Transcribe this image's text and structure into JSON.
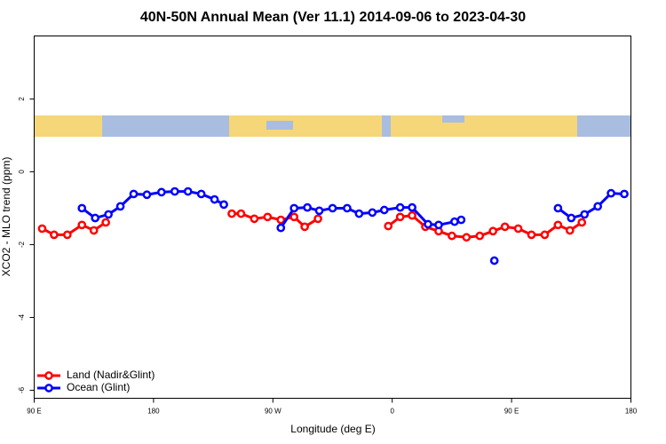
{
  "chart_data": {
    "type": "line",
    "title": "40N-50N Annual Mean (Ver 11.1)   2014-09-06 to 2023-04-30",
    "x_label": "Longitude (deg E)",
    "y_label": "XCO2 - MLO trend (ppm)",
    "xlim": [
      90,
      540
    ],
    "xticks": [
      {
        "value": 90,
        "label": "90 E"
      },
      180,
      {
        "value": 270,
        "label": "90 W"
      },
      {
        "value": 360,
        "label": "0"
      },
      {
        "value": 450,
        "label": "90 E"
      },
      {
        "value": 540,
        "label": "180"
      }
    ],
    "ylim": [
      -6.22,
      3.73
    ],
    "yticks": [
      -6,
      -4,
      -2,
      0,
      2
    ],
    "legend": "bottom-left",
    "series": [
      {
        "name": "Land (Nadir&Glint)",
        "color": "#ff0000",
        "x": [
          96,
          105,
          115,
          126,
          135,
          144,
          null,
          239,
          246,
          256,
          266,
          276,
          286,
          294,
          304,
          null,
          357,
          366,
          375,
          385,
          395,
          405,
          416,
          426,
          436,
          445,
          455,
          465,
          475,
          485,
          494,
          503
        ],
        "values": [
          -1.56,
          -1.73,
          -1.73,
          -1.46,
          -1.61,
          -1.39,
          null,
          -1.15,
          -1.15,
          -1.29,
          -1.24,
          -1.32,
          -1.24,
          -1.51,
          -1.29,
          null,
          -1.49,
          -1.24,
          -1.2,
          -1.51,
          -1.63,
          -1.76,
          -1.8,
          -1.76,
          -1.63,
          -1.51,
          -1.56,
          -1.73,
          -1.73,
          -1.46,
          -1.61,
          -1.39
        ]
      },
      {
        "name": "Ocean (Glint)",
        "color": "#0000ff",
        "x": [
          126,
          136,
          146,
          155,
          165,
          175,
          186,
          196,
          206,
          216,
          226,
          233,
          null,
          276,
          286,
          296,
          305,
          315,
          326,
          335,
          345,
          354,
          366,
          375,
          387,
          395,
          407,
          412,
          null,
          437,
          null,
          485,
          495,
          505,
          515,
          525,
          535
        ],
        "values": [
          -1.0,
          -1.27,
          -1.17,
          -0.95,
          -0.61,
          -0.63,
          -0.56,
          -0.54,
          -0.54,
          -0.61,
          -0.76,
          -0.9,
          null,
          -1.54,
          -1.0,
          -0.98,
          -1.07,
          -1.0,
          -1.0,
          -1.15,
          -1.12,
          -1.05,
          -0.98,
          -0.98,
          -1.44,
          -1.46,
          -1.37,
          -1.32,
          null,
          -2.44,
          null,
          -1.0,
          -1.27,
          -1.17,
          -0.95,
          -0.59,
          -0.61
        ]
      }
    ]
  }
}
